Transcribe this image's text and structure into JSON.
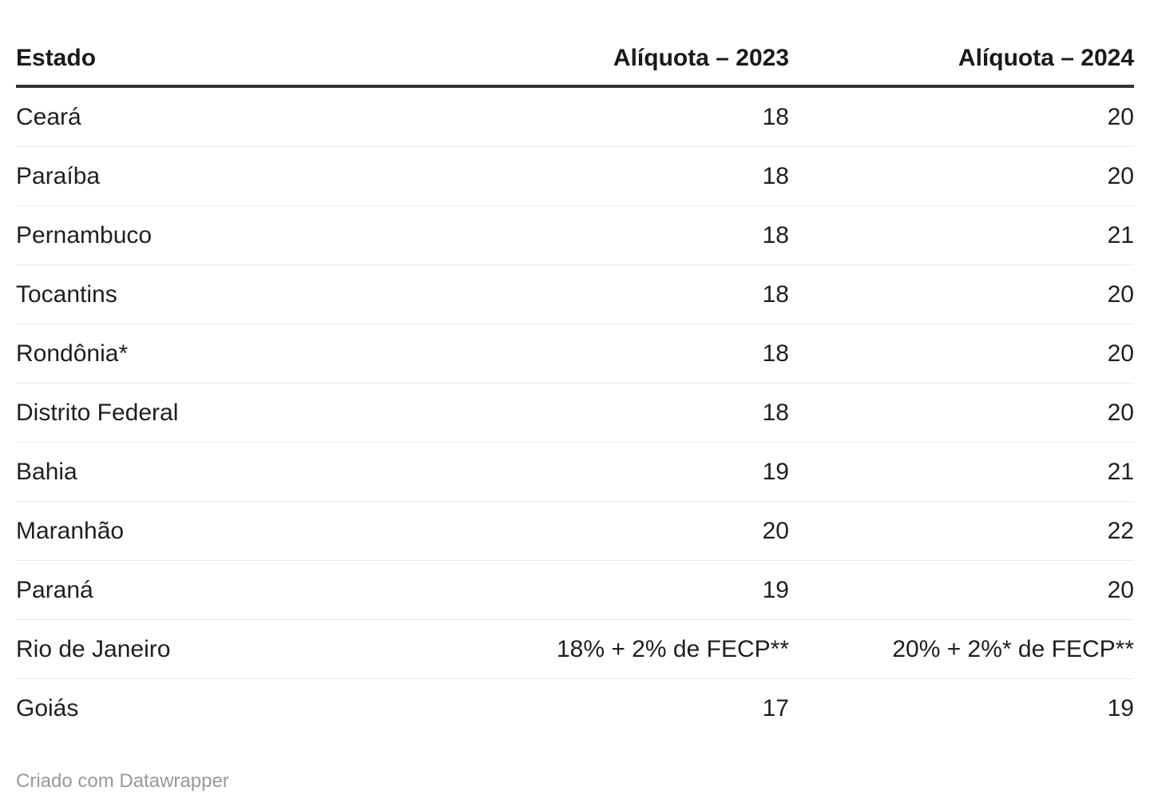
{
  "chart_data": {
    "type": "table",
    "columns": [
      "Estado",
      "Alíquota – 2023",
      "Alíquota – 2024"
    ],
    "rows": [
      [
        "Ceará",
        "18",
        "20"
      ],
      [
        "Paraíba",
        "18",
        "20"
      ],
      [
        "Pernambuco",
        "18",
        "21"
      ],
      [
        "Tocantins",
        "18",
        "20"
      ],
      [
        "Rondônia*",
        "18",
        "20"
      ],
      [
        "Distrito Federal",
        "18",
        "20"
      ],
      [
        "Bahia",
        "19",
        "21"
      ],
      [
        "Maranhão",
        "20",
        "22"
      ],
      [
        "Paraná",
        "19",
        "20"
      ],
      [
        "Rio de Janeiro",
        "18% + 2% de FECP**",
        "20% + 2%* de FECP**"
      ],
      [
        "Goiás",
        "17",
        "19"
      ]
    ],
    "legend_position": "none",
    "grid": "horizontal-row-separators"
  },
  "footer": {
    "prefix": "Criado com ",
    "link_label": "Datawrapper"
  },
  "colors": {
    "text": "#1f1f1f",
    "header_text": "#1a1a1a",
    "header_border": "#333333",
    "row_border": "#e8e8e8",
    "footer_text": "#999999",
    "background": "#ffffff"
  }
}
